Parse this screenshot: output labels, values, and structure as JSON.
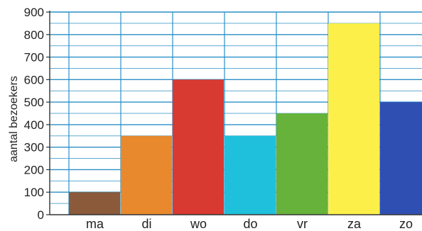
{
  "chart_data": {
    "type": "bar",
    "title": "",
    "xlabel": "",
    "ylabel": "aantal bezoekers",
    "categories": [
      "ma",
      "di",
      "wo",
      "do",
      "vr",
      "za",
      "zo"
    ],
    "values": [
      100,
      350,
      600,
      350,
      450,
      850,
      500
    ],
    "ylim": [
      0,
      900
    ],
    "yticks": [
      0,
      100,
      200,
      300,
      400,
      500,
      600,
      700,
      800,
      900
    ],
    "minor_grid_step": 50,
    "grid": true,
    "legend": "none",
    "colors": {
      "bars": [
        "#8a5a3a",
        "#e8892e",
        "#d83a32",
        "#1fc0dc",
        "#66b23a",
        "#fcef4a",
        "#2f4fb2"
      ],
      "grid": "#2a8fc6",
      "axis": "#333333"
    }
  }
}
